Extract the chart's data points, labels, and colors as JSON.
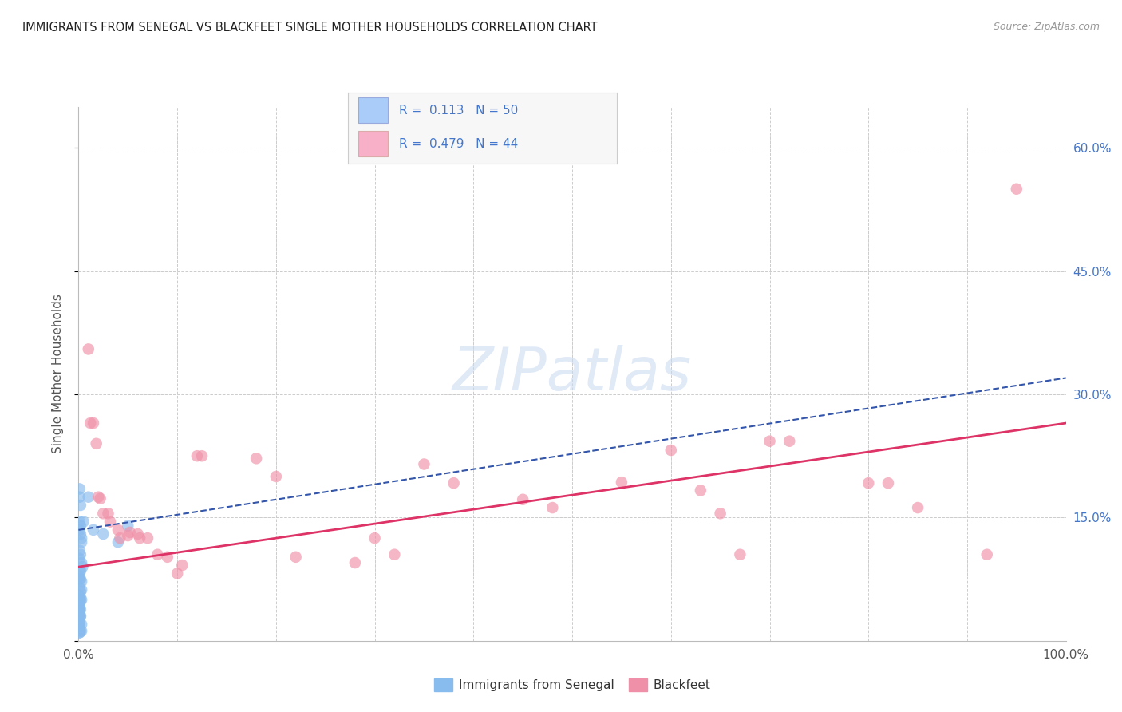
{
  "title": "IMMIGRANTS FROM SENEGAL VS BLACKFEET SINGLE MOTHER HOUSEHOLDS CORRELATION CHART",
  "source": "Source: ZipAtlas.com",
  "ylabel": "Single Mother Households",
  "xlim": [
    0,
    1.0
  ],
  "ylim": [
    0,
    0.65
  ],
  "xticks": [
    0.0,
    0.1,
    0.2,
    0.3,
    0.4,
    0.5,
    0.6,
    0.7,
    0.8,
    0.9,
    1.0
  ],
  "xticklabels": [
    "0.0%",
    "",
    "",
    "",
    "",
    "",
    "",
    "",
    "",
    "",
    "100.0%"
  ],
  "ytick_positions": [
    0.0,
    0.15,
    0.3,
    0.45,
    0.6
  ],
  "yticklabels_right": [
    "",
    "15.0%",
    "30.0%",
    "45.0%",
    "60.0%"
  ],
  "legend_color1": "#aaccf8",
  "legend_color2": "#f8b0c8",
  "senegal_color": "#88bbee",
  "blackfeet_color": "#f090a8",
  "senegal_line_color": "#3355aa",
  "blackfeet_line_color": "#dd3366",
  "watermark_color": "#c8d8f0",
  "background_color": "#ffffff",
  "grid_color": "#cccccc",
  "title_color": "#222222",
  "right_tick_color": "#4477cc",
  "axis_label_color": "#555555",
  "senegal_line": [
    0.0,
    0.135,
    1.0,
    0.32
  ],
  "blackfeet_line": [
    0.0,
    0.09,
    1.0,
    0.265
  ],
  "senegal_points": [
    [
      0.001,
      0.185
    ],
    [
      0.001,
      0.175
    ],
    [
      0.002,
      0.165
    ],
    [
      0.003,
      0.125
    ],
    [
      0.001,
      0.145
    ],
    [
      0.001,
      0.135
    ],
    [
      0.002,
      0.14
    ],
    [
      0.002,
      0.13
    ],
    [
      0.003,
      0.12
    ],
    [
      0.001,
      0.11
    ],
    [
      0.001,
      0.1
    ],
    [
      0.002,
      0.105
    ],
    [
      0.003,
      0.095
    ],
    [
      0.004,
      0.09
    ],
    [
      0.001,
      0.085
    ],
    [
      0.002,
      0.085
    ],
    [
      0.001,
      0.078
    ],
    [
      0.001,
      0.075
    ],
    [
      0.002,
      0.075
    ],
    [
      0.003,
      0.072
    ],
    [
      0.001,
      0.065
    ],
    [
      0.002,
      0.06
    ],
    [
      0.003,
      0.062
    ],
    [
      0.001,
      0.055
    ],
    [
      0.002,
      0.052
    ],
    [
      0.001,
      0.05
    ],
    [
      0.003,
      0.05
    ],
    [
      0.002,
      0.048
    ],
    [
      0.001,
      0.042
    ],
    [
      0.001,
      0.04
    ],
    [
      0.002,
      0.038
    ],
    [
      0.001,
      0.04
    ],
    [
      0.001,
      0.033
    ],
    [
      0.002,
      0.03
    ],
    [
      0.001,
      0.028
    ],
    [
      0.002,
      0.03
    ],
    [
      0.001,
      0.022
    ],
    [
      0.001,
      0.02
    ],
    [
      0.003,
      0.02
    ],
    [
      0.001,
      0.018
    ],
    [
      0.002,
      0.012
    ],
    [
      0.001,
      0.01
    ],
    [
      0.003,
      0.012
    ],
    [
      0.001,
      0.01
    ],
    [
      0.01,
      0.175
    ],
    [
      0.015,
      0.135
    ],
    [
      0.025,
      0.13
    ],
    [
      0.04,
      0.12
    ],
    [
      0.005,
      0.145
    ],
    [
      0.05,
      0.14
    ]
  ],
  "blackfeet_points": [
    [
      0.01,
      0.355
    ],
    [
      0.012,
      0.265
    ],
    [
      0.015,
      0.265
    ],
    [
      0.018,
      0.24
    ],
    [
      0.02,
      0.175
    ],
    [
      0.022,
      0.173
    ],
    [
      0.025,
      0.155
    ],
    [
      0.03,
      0.155
    ],
    [
      0.032,
      0.145
    ],
    [
      0.04,
      0.135
    ],
    [
      0.042,
      0.125
    ],
    [
      0.05,
      0.128
    ],
    [
      0.052,
      0.132
    ],
    [
      0.06,
      0.13
    ],
    [
      0.062,
      0.125
    ],
    [
      0.07,
      0.125
    ],
    [
      0.08,
      0.105
    ],
    [
      0.09,
      0.102
    ],
    [
      0.1,
      0.082
    ],
    [
      0.105,
      0.092
    ],
    [
      0.12,
      0.225
    ],
    [
      0.125,
      0.225
    ],
    [
      0.18,
      0.222
    ],
    [
      0.2,
      0.2
    ],
    [
      0.22,
      0.102
    ],
    [
      0.28,
      0.095
    ],
    [
      0.3,
      0.125
    ],
    [
      0.32,
      0.105
    ],
    [
      0.35,
      0.215
    ],
    [
      0.38,
      0.192
    ],
    [
      0.45,
      0.172
    ],
    [
      0.48,
      0.162
    ],
    [
      0.55,
      0.193
    ],
    [
      0.6,
      0.232
    ],
    [
      0.63,
      0.183
    ],
    [
      0.65,
      0.155
    ],
    [
      0.67,
      0.105
    ],
    [
      0.7,
      0.243
    ],
    [
      0.72,
      0.243
    ],
    [
      0.8,
      0.192
    ],
    [
      0.82,
      0.192
    ],
    [
      0.85,
      0.162
    ],
    [
      0.92,
      0.105
    ],
    [
      0.95,
      0.55
    ]
  ]
}
